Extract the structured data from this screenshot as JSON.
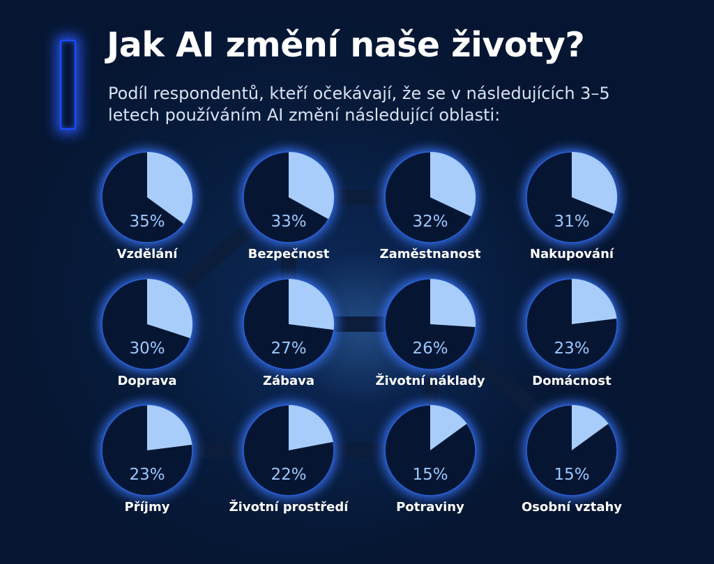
{
  "title": "Jak AI změní naše životy?",
  "subtitle": "Podíl respondentů, kteří očekávají, že se v následujících 3–5 letech používáním AI změní následující oblasti:",
  "colors": {
    "background": "#061632",
    "pie_base": "#061632",
    "pie_slice": "#a8cdfa",
    "pie_glow": "#3a78ff",
    "percent_text": "#9ec8ff",
    "accent": "#1e4cff"
  },
  "chart_data": {
    "type": "pie",
    "unit": "%",
    "categories": [
      "Vzdělání",
      "Bezpečnost",
      "Zaměstnanost",
      "Nakupování",
      "Doprava",
      "Zábava",
      "Životní náklady",
      "Domácnost",
      "Příjmy",
      "Životní prostředí",
      "Potraviny",
      "Osobní vztahy"
    ],
    "values": [
      35,
      33,
      32,
      31,
      30,
      27,
      26,
      23,
      23,
      22,
      15,
      15
    ],
    "value_labels": [
      "35%",
      "33%",
      "32%",
      "31%",
      "30%",
      "27%",
      "26%",
      "23%",
      "23%",
      "22%",
      "15%",
      "15%"
    ]
  }
}
